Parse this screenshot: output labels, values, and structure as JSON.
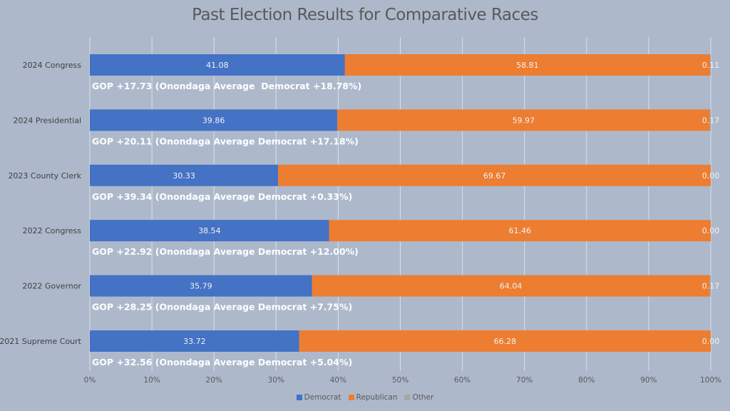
{
  "chart_data": {
    "type": "bar",
    "orientation": "horizontal",
    "stacked": "100%",
    "title": "Past Election Results for Comparative Races",
    "xlabel": "",
    "ylabel": "",
    "xlim": [
      0,
      100
    ],
    "x_ticks": [
      "0%",
      "10%",
      "20%",
      "30%",
      "40%",
      "50%",
      "60%",
      "70%",
      "80%",
      "90%",
      "100%"
    ],
    "grid": true,
    "legend_position": "bottom",
    "categories": [
      "2024 Congress",
      "2024 Presidential",
      "2023 County Clerk",
      "2022 Congress",
      "2022 Governor",
      "2021 Supreme Court"
    ],
    "series": [
      {
        "name": "Democrat",
        "color": "#4472c4",
        "values": [
          41.08,
          39.86,
          30.33,
          38.54,
          35.79,
          33.72
        ],
        "labels": [
          "41.08",
          "39.86",
          "30.33",
          "38.54",
          "35.79",
          "33.72"
        ]
      },
      {
        "name": "Republican",
        "color": "#ed7d31",
        "values": [
          58.81,
          59.97,
          69.67,
          61.46,
          64.04,
          66.28
        ],
        "labels": [
          "58.81",
          "59.97",
          "69.67",
          "61.46",
          "64.04",
          "66.28"
        ]
      },
      {
        "name": "Other",
        "color": "#a5a5a5",
        "values": [
          0.11,
          0.17,
          0.0,
          0.0,
          0.17,
          0.0
        ],
        "labels": [
          "0.11",
          "0.17",
          "0.00",
          "0.00",
          "0.17",
          "0.00"
        ]
      }
    ],
    "annotations": [
      "GOP +17.73 (Onondaga Average  Democrat +18.78%)",
      "GOP +20.11 (Onondaga Average Democrat +17.18%)",
      "GOP +39.34 (Onondaga Average Democrat +0.33%)",
      "GOP +22.92 (Onondaga Average Democrat +12.00%)",
      "GOP +28.25 (Onondaga Average Democrat +7.75%)",
      "GOP +32.56 (Onondaga Average Democrat +5.04%)"
    ]
  }
}
